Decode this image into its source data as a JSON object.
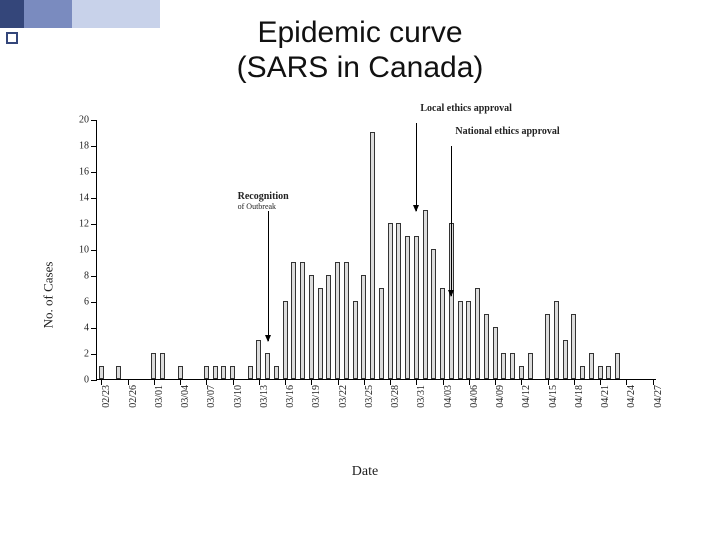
{
  "title_line1": "Epidemic curve",
  "title_line2": "(SARS in Canada)",
  "chart": {
    "type": "bar",
    "y_label": "No. of Cases",
    "x_label": "Date",
    "ylim": [
      0,
      20
    ],
    "ytick_step": 2,
    "bar_width_ratio": 0.55,
    "bar_fill": "#dcdcdc",
    "bar_border": "#333333",
    "axis_color": "#000000",
    "background_color": "#ffffff",
    "x_categories": [
      "02/23",
      "02/24",
      "02/25",
      "02/26",
      "02/27",
      "02/28",
      "03/01",
      "03/02",
      "03/03",
      "03/04",
      "03/05",
      "03/06",
      "03/07",
      "03/08",
      "03/09",
      "03/10",
      "03/11",
      "03/12",
      "03/13",
      "03/14",
      "03/15",
      "03/16",
      "03/17",
      "03/18",
      "03/19",
      "03/20",
      "03/21",
      "03/22",
      "03/23",
      "03/24",
      "03/25",
      "03/26",
      "03/27",
      "03/28",
      "03/29",
      "03/30",
      "03/31",
      "04/01",
      "04/02",
      "04/03",
      "04/04",
      "04/05",
      "04/06",
      "04/07",
      "04/08",
      "04/09",
      "04/10",
      "04/11",
      "04/12",
      "04/13",
      "04/14",
      "04/15",
      "04/16",
      "04/17",
      "04/18",
      "04/19",
      "04/20",
      "04/21",
      "04/22",
      "04/23",
      "04/24",
      "04/25",
      "04/26",
      "04/27"
    ],
    "x_tick_every": 3,
    "values": [
      1,
      0,
      1,
      0,
      0,
      0,
      2,
      2,
      0,
      1,
      0,
      0,
      1,
      1,
      1,
      1,
      0,
      1,
      3,
      2,
      1,
      6,
      9,
      9,
      8,
      7,
      8,
      9,
      9,
      6,
      8,
      19,
      7,
      12,
      12,
      11,
      11,
      13,
      10,
      7,
      12,
      6,
      6,
      7,
      5,
      4,
      2,
      2,
      1,
      2,
      0,
      5,
      6,
      3,
      5,
      1,
      2,
      1,
      1,
      2,
      0,
      0,
      0,
      0
    ],
    "annotations": [
      {
        "label": "Recognition",
        "sublabel": "of Outbreak",
        "x_index": 19,
        "arrow_from_y": 13,
        "arrow_to_y": 3,
        "label_dx": -30
      },
      {
        "label": "Local ethics approval",
        "sublabel": "",
        "x_index": 36,
        "arrow_from_y": 19.8,
        "arrow_to_y": 13,
        "label_dx": 4
      },
      {
        "label": "National ethics approval",
        "sublabel": "",
        "x_index": 40,
        "arrow_from_y": 18,
        "arrow_to_y": 6.5,
        "label_dx": 4
      }
    ]
  }
}
